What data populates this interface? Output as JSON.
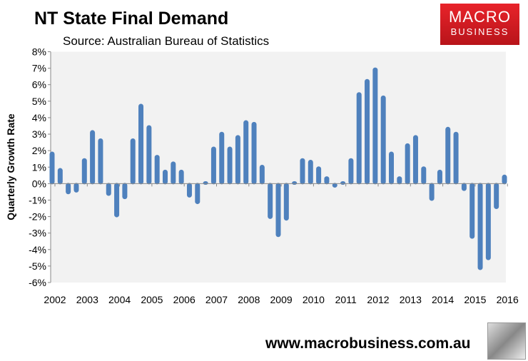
{
  "header": {
    "title": "NT State Final Demand",
    "source": "Source: Australian Bureau of Statistics",
    "logo_line1": "MACRO",
    "logo_line2": "BUSINESS"
  },
  "footer": {
    "website": "www.macrobusiness.com.au"
  },
  "colors": {
    "bar": "#4f81bd",
    "plot_bg": "#f2f2f2",
    "logo": "#d91c24"
  },
  "chart_data": {
    "type": "bar",
    "title": "NT State Final Demand",
    "ylabel": "Quarterly Growth Rate",
    "xlabel": "",
    "ylim": [
      -6,
      8
    ],
    "yticks": [
      "-6%",
      "-5%",
      "-4%",
      "-3%",
      "-2%",
      "-1%",
      "0%",
      "1%",
      "2%",
      "3%",
      "4%",
      "5%",
      "6%",
      "7%",
      "8%"
    ],
    "xticks": [
      "2002",
      "2003",
      "2004",
      "2005",
      "2006",
      "2007",
      "2008",
      "2009",
      "2010",
      "2011",
      "2012",
      "2013",
      "2014",
      "2015",
      "2016"
    ],
    "grid": false,
    "values": [
      1.9,
      0.9,
      -0.6,
      -0.5,
      1.5,
      3.2,
      2.7,
      -0.7,
      -2.0,
      -0.9,
      2.7,
      4.8,
      3.5,
      1.7,
      0.8,
      1.3,
      0.8,
      -0.8,
      -1.2,
      0.1,
      2.2,
      3.1,
      2.2,
      2.9,
      3.8,
      3.7,
      1.1,
      -2.1,
      -3.2,
      -2.2,
      0.1,
      1.5,
      1.4,
      1.0,
      0.4,
      -0.2,
      0.1,
      1.5,
      5.5,
      6.3,
      7.0,
      5.3,
      1.9,
      0.4,
      2.4,
      2.9,
      1.0,
      -1.0,
      0.8,
      3.4,
      3.1,
      -0.4,
      -3.3,
      -5.2,
      -4.6,
      -1.5,
      0.5
    ]
  }
}
